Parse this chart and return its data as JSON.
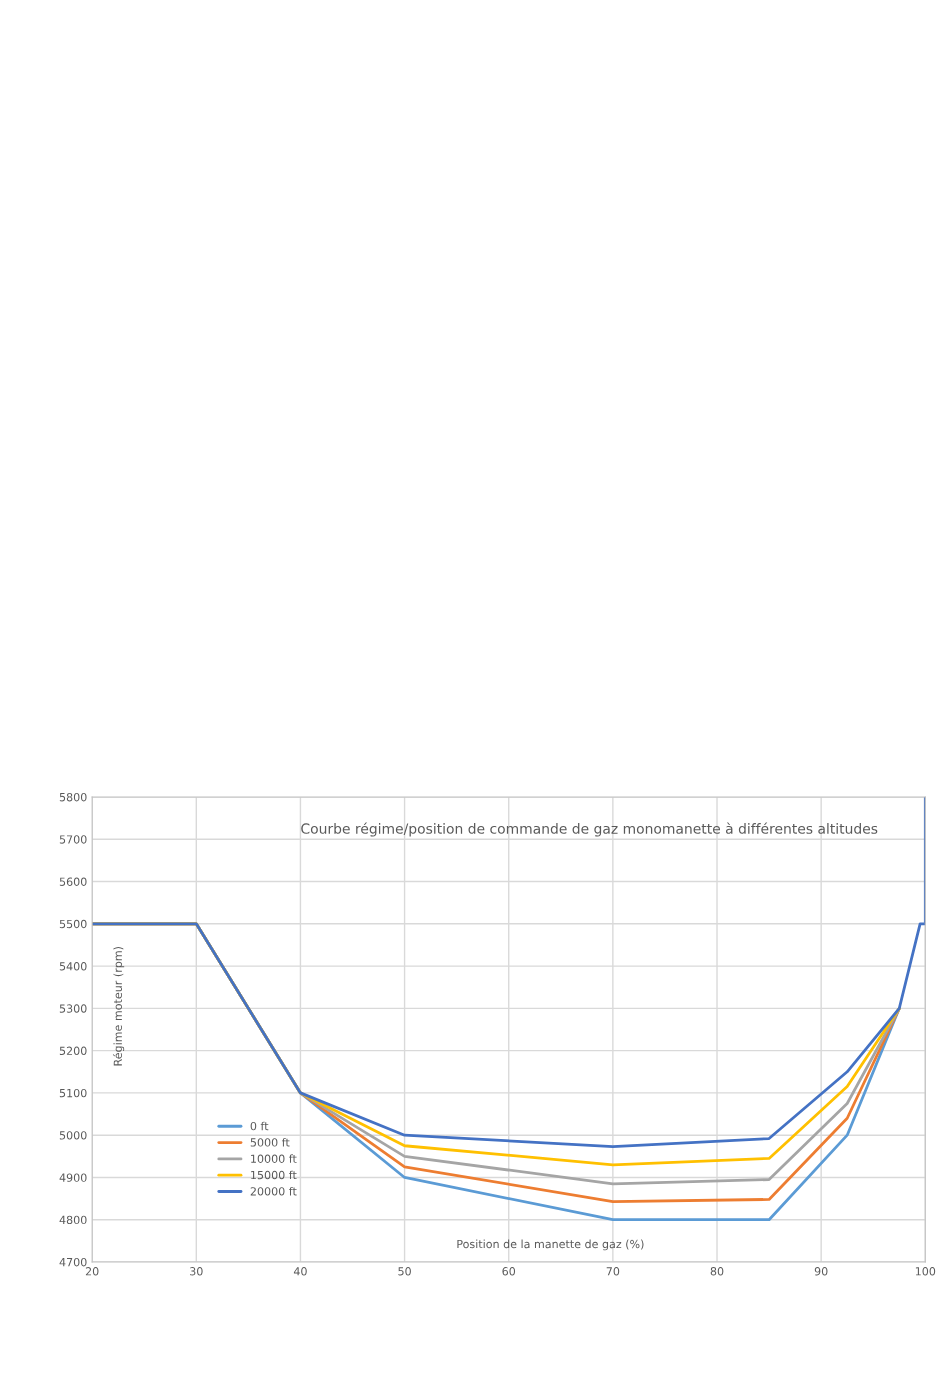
{
  "chart_data": {
    "type": "line",
    "title": "Courbe régime/position de commande de gaz monomanette à différentes altitudes",
    "xlabel": "Position de la manette de gaz (%)",
    "ylabel": "Régime moteur (rpm)",
    "x": [
      20,
      30,
      40,
      50,
      70,
      85,
      92.5,
      97.5,
      99.5,
      100,
      100
    ],
    "series": [
      {
        "name": "0 ft",
        "color": "#5b9bd5",
        "values": [
          5500,
          5500,
          5100,
          4900,
          4800,
          4800,
          5000,
          5300,
          null,
          null,
          null
        ]
      },
      {
        "name": "5000 ft",
        "color": "#ed7d31",
        "values": [
          5500,
          5500,
          5100,
          4925,
          4843,
          4848,
          5040,
          5300,
          null,
          null,
          null
        ]
      },
      {
        "name": "10000 ft",
        "color": "#a5a5a5",
        "values": [
          5500,
          5500,
          5100,
          4950,
          4885,
          4895,
          5075,
          5300,
          null,
          null,
          null
        ]
      },
      {
        "name": "15000 ft",
        "color": "#ffc000",
        "values": [
          5500,
          5500,
          5100,
          4975,
          4930,
          4945,
          5115,
          5300,
          null,
          null,
          null
        ]
      },
      {
        "name": "20000 ft",
        "color": "#4472c4",
        "values": [
          5500,
          5500,
          5100,
          5000,
          4973,
          4992,
          5150,
          5300,
          5500,
          5500,
          5800
        ]
      }
    ],
    "xlim": [
      20,
      100
    ],
    "xticks": [
      20,
      30,
      40,
      50,
      60,
      70,
      80,
      90,
      100
    ],
    "ylim": [
      4700,
      5800
    ],
    "yticks": [
      4700,
      4800,
      4900,
      5000,
      5100,
      5200,
      5300,
      5400,
      5500,
      5600,
      5700,
      5800
    ],
    "grid": true,
    "legend": "center left",
    "marker": "none",
    "line_style": "solid"
  }
}
